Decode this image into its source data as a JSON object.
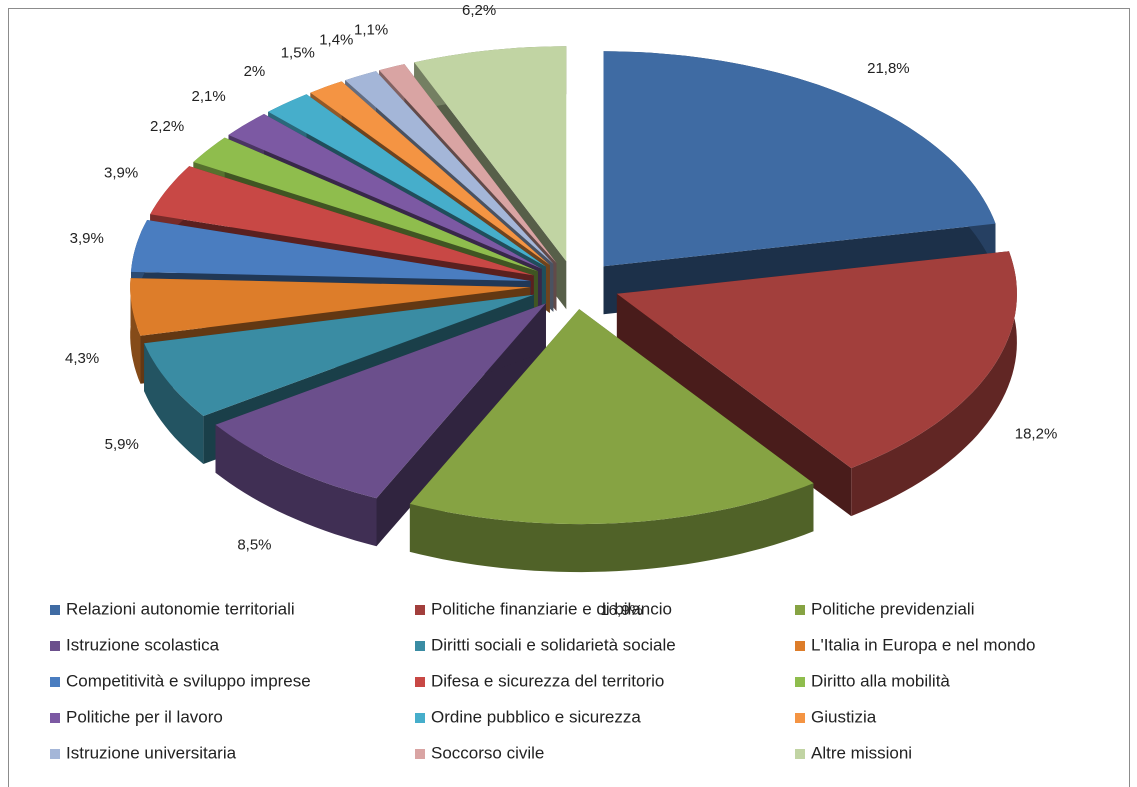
{
  "chart_data": {
    "type": "pie",
    "categories": [
      "Relazioni autonomie territoriali",
      "Politiche finanziarie e di bilancio",
      "Politiche previdenziali",
      "Istruzione scolastica",
      "Diritti sociali e solidarietà sociale",
      "L'Italia in Europa e nel mondo",
      "Competitività e sviluppo imprese",
      "Difesa e sicurezza del territorio",
      "Diritto alla mobilità",
      "Politiche per il lavoro",
      "Ordine pubblico e sicurezza",
      "Giustizia",
      "Istruzione universitaria",
      "Soccorso civile",
      "Altre missioni"
    ],
    "values": [
      21.8,
      18.2,
      16.9,
      8.5,
      5.9,
      4.3,
      3.9,
      3.9,
      2.2,
      2.1,
      2,
      1.5,
      1.4,
      1.1,
      6.2
    ],
    "value_labels": [
      "21,8%",
      "18,2%",
      "16,9%",
      "8,5%",
      "5,9%",
      "4,3%",
      "3,9%",
      "3,9%",
      "2,2%",
      "2,1%",
      "2%",
      "1,5%",
      "1,4%",
      "1,1%",
      "6,2%"
    ],
    "colors": [
      "#3f6ba3",
      "#a23f3c",
      "#86a343",
      "#6b4f8c",
      "#3a8ca3",
      "#dd7d2a",
      "#4a7dc0",
      "#c84845",
      "#8fbd4d",
      "#7c59a3",
      "#46aecb",
      "#f49443",
      "#a4b6d8",
      "#d9a4a3",
      "#c1d4a3"
    ],
    "legend": "bottom"
  }
}
